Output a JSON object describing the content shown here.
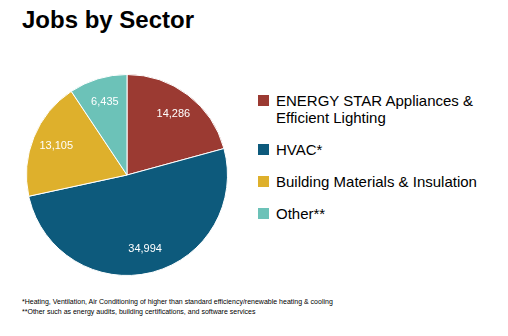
{
  "chart_data": {
    "type": "pie",
    "title": "Jobs by Sector",
    "categories": [
      "ENERGY STAR Appliances & Efficient Lighting",
      "HVAC*",
      "Building Materials & Insulation",
      "Other**"
    ],
    "values": [
      14286,
      34994,
      13105,
      6435
    ],
    "value_labels": [
      "14,286",
      "34,994",
      "13,105",
      "6,435"
    ],
    "colors": [
      "#9b3a32",
      "#0d5a7c",
      "#deb02c",
      "#6cc2b8"
    ],
    "data_labels": true,
    "legend": "right",
    "annotations": [
      "*Heating, Ventilation, Air Conditioning of higher than standard efficiency/renewable heating & cooling",
      "**Other such as energy audits, building certifications, and software services"
    ]
  }
}
